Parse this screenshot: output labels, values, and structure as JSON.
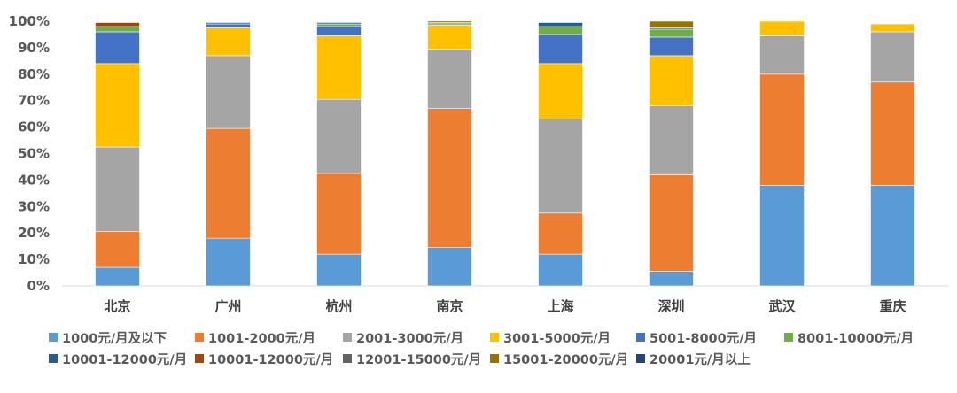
{
  "chart_data": {
    "type": "bar",
    "stacked": true,
    "categories": [
      "北京",
      "广州",
      "杭州",
      "南京",
      "上海",
      "深圳",
      "武汉",
      "重庆"
    ],
    "ylim": [
      0,
      1
    ],
    "yticks": [
      "0%",
      "10%",
      "20%",
      "30%",
      "40%",
      "50%",
      "60%",
      "70%",
      "80%",
      "90%",
      "100%"
    ],
    "grid": false,
    "legend_position": "bottom",
    "series": [
      {
        "name": "1000元/月及以下",
        "color": "#5B9BD5",
        "values": [
          0.07,
          0.18,
          0.12,
          0.145,
          0.12,
          0.055,
          0.38,
          0.38
        ]
      },
      {
        "name": "1001-2000元/月",
        "color": "#ED7D31",
        "values": [
          0.135,
          0.415,
          0.305,
          0.525,
          0.155,
          0.365,
          0.42,
          0.39
        ]
      },
      {
        "name": "2001-3000元/月",
        "color": "#A5A5A5",
        "values": [
          0.32,
          0.275,
          0.28,
          0.225,
          0.355,
          0.26,
          0.145,
          0.19
        ]
      },
      {
        "name": "3001-5000元/月",
        "color": "#FFC000",
        "values": [
          0.315,
          0.105,
          0.24,
          0.09,
          0.21,
          0.19,
          0.055,
          0.03
        ]
      },
      {
        "name": "5001-8000元/月",
        "color": "#4472C4",
        "values": [
          0.12,
          0.015,
          0.035,
          0.005,
          0.11,
          0.07,
          0.0,
          0.0
        ]
      },
      {
        "name": "8001-10000元/月",
        "color": "#70AD47",
        "values": [
          0.02,
          0.0,
          0.01,
          0.005,
          0.03,
          0.03,
          0.0,
          0.0
        ]
      },
      {
        "name": "10001-12000元/月",
        "color": "#255E91",
        "values": [
          0.0,
          0.005,
          0.005,
          0.0,
          0.015,
          0.005,
          0.0,
          0.0
        ]
      },
      {
        "name": "10001-12000元/月",
        "color": "#9E480E",
        "values": [
          0.015,
          0.0,
          0.0,
          0.005,
          0.0,
          0.0,
          0.0,
          0.0
        ]
      },
      {
        "name": "12001-15000元/月",
        "color": "#636363",
        "values": [
          0.0,
          0.0,
          0.003,
          0.0,
          0.0,
          0.0,
          0.0,
          0.0
        ]
      },
      {
        "name": "15001-20000元/月",
        "color": "#997300",
        "values": [
          0.0,
          0.0,
          0.0,
          0.0,
          0.0,
          0.025,
          0.0,
          0.0
        ]
      },
      {
        "name": "20001元/月以上",
        "color": "#264478",
        "values": [
          0.0,
          0.0,
          0.002,
          0.0,
          0.0,
          0.0,
          0.0,
          0.0
        ]
      }
    ]
  }
}
